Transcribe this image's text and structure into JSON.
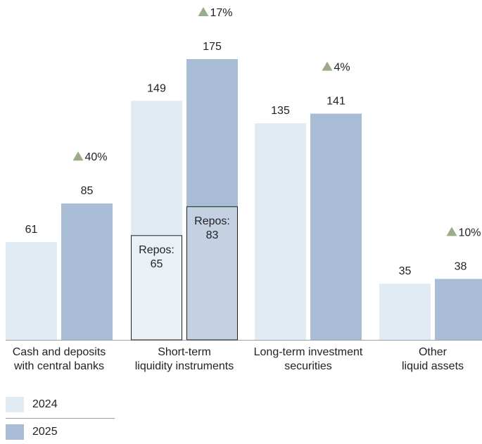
{
  "chart_data": {
    "type": "bar",
    "categories": [
      [
        "Cash and deposits",
        "with central banks"
      ],
      [
        "Short-term",
        "liquidity instruments"
      ],
      [
        "Long-term investment",
        "securities"
      ],
      [
        "Other",
        "liquid assets"
      ]
    ],
    "series": [
      {
        "name": "2024",
        "values": [
          61,
          149,
          135,
          35
        ],
        "color": "#e1ebf3"
      },
      {
        "name": "2025",
        "values": [
          85,
          175,
          141,
          38
        ],
        "color": "#a8bcd6"
      }
    ],
    "changes": [
      "40%",
      "17%",
      "4%",
      "10%"
    ],
    "change_color": "#9aad8a",
    "sub_boxes": [
      {
        "category_index": 1,
        "series_index": 0,
        "label": [
          "Repos:",
          "65"
        ],
        "value": 65,
        "fill": "#eaf1f6"
      },
      {
        "category_index": 1,
        "series_index": 1,
        "label": [
          "Repos:",
          "83"
        ],
        "value": 83,
        "fill": "#c3d1e2"
      }
    ],
    "ylim": [
      0,
      180
    ],
    "legend_position": "bottom-left"
  }
}
